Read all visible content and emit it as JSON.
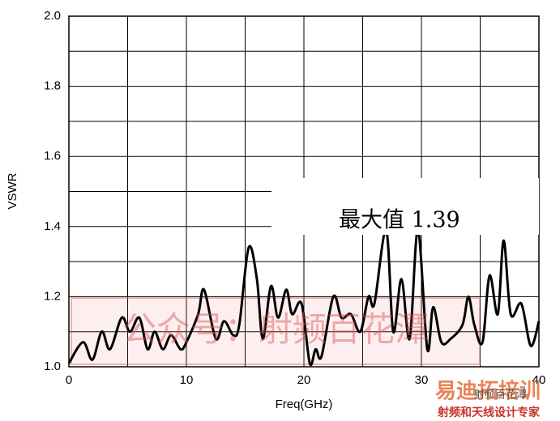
{
  "chart_data": {
    "type": "line",
    "xlabel": "Freq(GHz)",
    "ylabel": "VSWR",
    "xlim": [
      0,
      40
    ],
    "ylim": [
      1.0,
      2.0
    ],
    "xticks": [
      0,
      {
        "value": 5,
        "label": null
      },
      10,
      {
        "value": 15,
        "label": null
      },
      20,
      {
        "value": 25,
        "label": null
      },
      30,
      {
        "value": 35,
        "label": null
      },
      40
    ],
    "yticks": [
      {
        "value": 1.0,
        "label": "1.0"
      },
      {
        "value": 1.1,
        "label": null
      },
      {
        "value": 1.2,
        "label": "1.2"
      },
      {
        "value": 1.3,
        "label": null
      },
      {
        "value": 1.4,
        "label": "1.4"
      },
      {
        "value": 1.5,
        "label": null
      },
      {
        "value": 1.6,
        "label": "1.6"
      },
      {
        "value": 1.7,
        "label": null
      },
      {
        "value": 1.8,
        "label": "1.8"
      },
      {
        "value": 1.9,
        "label": null
      },
      {
        "value": 2.0,
        "label": "2.0"
      }
    ],
    "grid": true,
    "series": [
      {
        "color": "#000000",
        "x": [
          0,
          1.2,
          2,
          2.8,
          3.5,
          4.5,
          5.2,
          6,
          6.7,
          7.3,
          8,
          8.7,
          9.5,
          10,
          11,
          11.5,
          12.5,
          13.2,
          14,
          14.5,
          15.3,
          16,
          16.5,
          17.2,
          17.8,
          18.5,
          19,
          19.8,
          20.5,
          21,
          21.5,
          22.5,
          23.2,
          24,
          24.8,
          25.5,
          26,
          27,
          27.6,
          28.3,
          29,
          29.7,
          30.5,
          31,
          31.7,
          32.5,
          33.5,
          34,
          34.5,
          35.2,
          35.8,
          36.5,
          37,
          37.6,
          38.5,
          39.3,
          40
        ],
        "values": [
          1.01,
          1.07,
          1.02,
          1.1,
          1.05,
          1.14,
          1.1,
          1.14,
          1.05,
          1.1,
          1.05,
          1.09,
          1.05,
          1.07,
          1.15,
          1.22,
          1.08,
          1.13,
          1.09,
          1.12,
          1.34,
          1.25,
          1.08,
          1.23,
          1.14,
          1.22,
          1.15,
          1.18,
          1.01,
          1.05,
          1.03,
          1.2,
          1.14,
          1.15,
          1.1,
          1.2,
          1.18,
          1.39,
          1.1,
          1.25,
          1.08,
          1.39,
          1.05,
          1.17,
          1.07,
          1.08,
          1.12,
          1.2,
          1.12,
          1.07,
          1.26,
          1.15,
          1.36,
          1.15,
          1.18,
          1.06,
          1.13
        ]
      }
    ],
    "annotations": [
      "最大值 1.39"
    ]
  },
  "watermark": {
    "text": "公众号：射频百花潭"
  },
  "logo": {
    "brand": "易迪拓培训",
    "slogan": "射频和天线设计专家",
    "account": "射频百花潭"
  }
}
